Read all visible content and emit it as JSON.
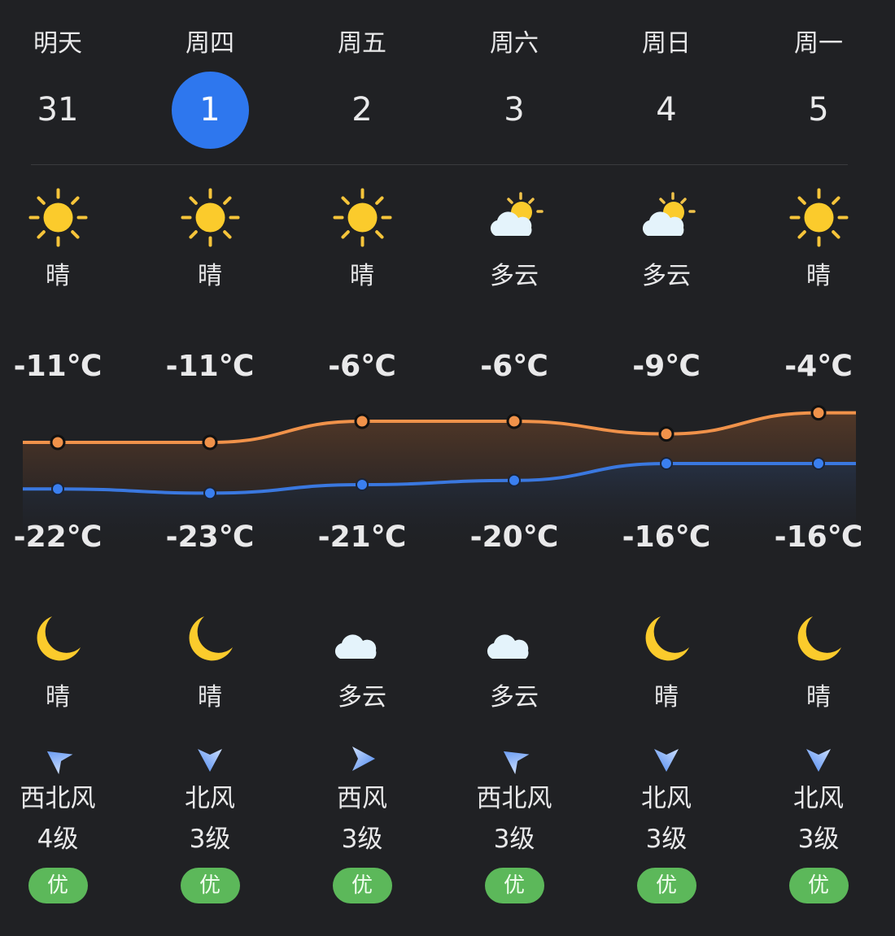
{
  "colors": {
    "accent": "#2e77ee",
    "high_line": "#f0924a",
    "low_line": "#3a78e0",
    "aqi_good": "#5cb85a",
    "background": "#202124"
  },
  "days": [
    {
      "name": "明天",
      "date": "31",
      "selected": false,
      "day_icon": "sun-icon",
      "day_weather": "晴",
      "high": -11,
      "high_label": "-11℃",
      "low": -22,
      "low_label": "-22℃",
      "night_icon": "moon-icon",
      "night_weather": "晴",
      "wind_dir": "西北风",
      "wind_icon": "wind-arrow-northwest-icon",
      "wind_level": "4级",
      "aqi": "优"
    },
    {
      "name": "周四",
      "date": "1",
      "selected": true,
      "day_icon": "sun-icon",
      "day_weather": "晴",
      "high": -11,
      "high_label": "-11℃",
      "low": -23,
      "low_label": "-23℃",
      "night_icon": "moon-icon",
      "night_weather": "晴",
      "wind_dir": "北风",
      "wind_icon": "wind-arrow-north-icon",
      "wind_level": "3级",
      "aqi": "优"
    },
    {
      "name": "周五",
      "date": "2",
      "selected": false,
      "day_icon": "sun-icon",
      "day_weather": "晴",
      "high": -6,
      "high_label": "-6℃",
      "low": -21,
      "low_label": "-21℃",
      "night_icon": "cloudy-night-icon",
      "night_weather": "多云",
      "wind_dir": "西风",
      "wind_icon": "wind-arrow-west-icon",
      "wind_level": "3级",
      "aqi": "优"
    },
    {
      "name": "周六",
      "date": "3",
      "selected": false,
      "day_icon": "partly-cloudy-icon",
      "day_weather": "多云",
      "high": -6,
      "high_label": "-6℃",
      "low": -20,
      "low_label": "-20℃",
      "night_icon": "cloudy-night-icon",
      "night_weather": "多云",
      "wind_dir": "西北风",
      "wind_icon": "wind-arrow-northwest-icon",
      "wind_level": "3级",
      "aqi": "优"
    },
    {
      "name": "周日",
      "date": "4",
      "selected": false,
      "day_icon": "partly-cloudy-icon",
      "day_weather": "多云",
      "high": -9,
      "high_label": "-9℃",
      "low": -16,
      "low_label": "-16℃",
      "night_icon": "moon-icon",
      "night_weather": "晴",
      "wind_dir": "北风",
      "wind_icon": "wind-arrow-north-icon",
      "wind_level": "3级",
      "aqi": "优"
    },
    {
      "name": "周一",
      "date": "5",
      "selected": false,
      "day_icon": "sun-icon",
      "day_weather": "晴",
      "high": -4,
      "high_label": "-4℃",
      "low": -16,
      "low_label": "-16℃",
      "night_icon": "moon-icon",
      "night_weather": "晴",
      "wind_dir": "北风",
      "wind_icon": "wind-arrow-north-icon",
      "wind_level": "3级",
      "aqi": "优"
    }
  ]
}
